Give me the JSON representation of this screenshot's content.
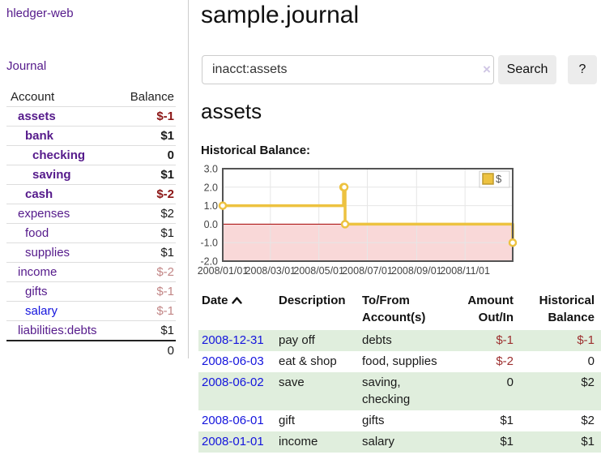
{
  "app_title": "hledger-web",
  "colors": {
    "link_purple": "#551a8b",
    "link_blue": "#1414dd",
    "negative_strong": "#8b1414",
    "negative_soft": "#c28686",
    "negative_table": "#9d2f2f",
    "row_stripe_green": "#e0eedd",
    "chart_line_gold": "#edc240",
    "chart_negative_region": "#f9d8d8",
    "chart_zero_line": "#a40000",
    "chart_border": "#545454"
  },
  "sidebar": {
    "journal_link": "Journal",
    "accounts": {
      "account_header": "Account",
      "balance_header": "Balance",
      "rows": [
        {
          "name": "assets",
          "balance": "$-1",
          "depth": 1,
          "bold": true,
          "amount_style": "negative-strong",
          "link_color": "purple"
        },
        {
          "name": "bank",
          "balance": "$1",
          "depth": 2,
          "bold": true,
          "amount_style": "normal",
          "link_color": "purple"
        },
        {
          "name": "checking",
          "balance": "0",
          "depth": 3,
          "bold": true,
          "amount_style": "normal",
          "link_color": "purple"
        },
        {
          "name": "saving",
          "balance": "$1",
          "depth": 3,
          "bold": true,
          "amount_style": "normal",
          "link_color": "purple"
        },
        {
          "name": "cash",
          "balance": "$-2",
          "depth": 2,
          "bold": true,
          "amount_style": "negative-strong",
          "link_color": "purple"
        },
        {
          "name": "expenses",
          "balance": "$2",
          "depth": 1,
          "bold": false,
          "amount_style": "normal",
          "link_color": "purple"
        },
        {
          "name": "food",
          "balance": "$1",
          "depth": 2,
          "bold": false,
          "amount_style": "normal",
          "link_color": "purple"
        },
        {
          "name": "supplies",
          "balance": "$1",
          "depth": 2,
          "bold": false,
          "amount_style": "normal",
          "link_color": "purple"
        },
        {
          "name": "income",
          "balance": "$-2",
          "depth": 1,
          "bold": false,
          "amount_style": "negative-soft",
          "link_color": "purple"
        },
        {
          "name": "gifts",
          "balance": "$-1",
          "depth": 2,
          "bold": false,
          "amount_style": "negative-soft",
          "link_color": "purple"
        },
        {
          "name": "salary",
          "balance": "$-1",
          "depth": 2,
          "bold": false,
          "amount_style": "negative-soft",
          "link_color": "blue"
        },
        {
          "name": "liabilities:debts",
          "balance": "$1",
          "depth": 1,
          "bold": false,
          "amount_style": "normal",
          "link_color": "purple"
        }
      ],
      "total": "0"
    }
  },
  "main": {
    "title": "sample.journal",
    "search": {
      "value": "inacct:assets",
      "clear_label": "×",
      "search_button": "Search",
      "help_button": "?"
    },
    "account_heading": "assets",
    "chart_title": "Historical Balance:"
  },
  "chart_data": {
    "type": "line",
    "step": true,
    "title": "Historical Balance:",
    "series": [
      {
        "name": "$",
        "points": [
          [
            "2008-01-01",
            1
          ],
          [
            "2008-06-01",
            2
          ],
          [
            "2008-06-02",
            2
          ],
          [
            "2008-06-03",
            0
          ],
          [
            "2008-12-31",
            -1
          ]
        ]
      }
    ],
    "x_range": [
      "2008-01-01",
      "2008-12-31"
    ],
    "x_tick_labels": [
      "2008/01/01",
      "2008/03/01",
      "2008/05/01",
      "2008/07/01",
      "2008/09/01",
      "2008/11/01"
    ],
    "y_tick_labels": [
      "3.0",
      "2.0",
      "1.0",
      "0.0",
      "-1.0",
      "-2.0"
    ],
    "ylim": [
      -2,
      3
    ],
    "grid": true,
    "negative_region_shaded": true,
    "legend": {
      "label": "$",
      "position": "top-right"
    }
  },
  "register": {
    "headers": {
      "date": "Date",
      "description": "Description",
      "accounts": "To/From Account(s)",
      "amount": "Amount Out/In",
      "balance": "Historical Balance"
    },
    "sort_icon": "chevron-up",
    "rows": [
      {
        "date": "2008-12-31",
        "description": "pay off",
        "accounts": "debts",
        "amount": "$-1",
        "amount_negative": true,
        "balance": "$-1",
        "balance_negative": true
      },
      {
        "date": "2008-06-03",
        "description": "eat & shop",
        "accounts": "food, supplies",
        "amount": "$-2",
        "amount_negative": true,
        "balance": "0",
        "balance_negative": false
      },
      {
        "date": "2008-06-02",
        "description": "save",
        "accounts": "saving, checking",
        "amount": "0",
        "amount_negative": false,
        "balance": "$2",
        "balance_negative": false
      },
      {
        "date": "2008-06-01",
        "description": "gift",
        "accounts": "gifts",
        "amount": "$1",
        "amount_negative": false,
        "balance": "$2",
        "balance_negative": false
      },
      {
        "date": "2008-01-01",
        "description": "income",
        "accounts": "salary",
        "amount": "$1",
        "amount_negative": false,
        "balance": "$1",
        "balance_negative": false
      }
    ]
  }
}
